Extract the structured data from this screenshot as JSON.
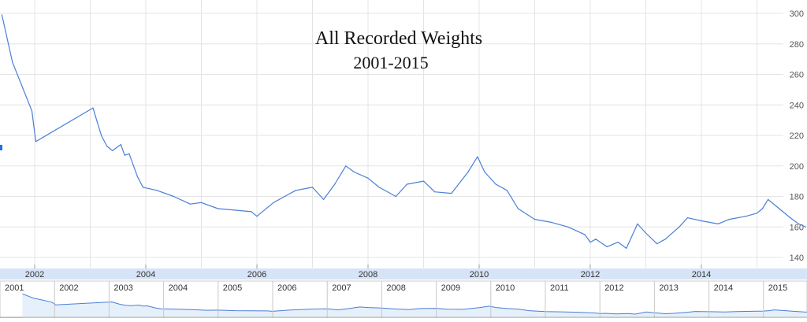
{
  "chart_data": [
    {
      "type": "line",
      "title": "All Recorded Weights",
      "subtitle": "2001-2015",
      "y_ticks": [
        "140",
        "160",
        "180",
        "200",
        "220",
        "240",
        "260",
        "280",
        "300"
      ],
      "x_ticks": [
        "2002",
        "2004",
        "2006",
        "2008",
        "2010",
        "2012",
        "2014"
      ],
      "ylim": [
        130,
        300
      ],
      "xlim": [
        2001.41,
        2015.88
      ],
      "grid": true,
      "line_color": "#4a7fd6",
      "series": [
        {
          "x": [
            2001.41,
            2001.6,
            2001.95,
            2002.02,
            2003.05,
            2003.1,
            2003.2,
            2003.3,
            2003.4,
            2003.55,
            2003.62,
            2003.7,
            2003.85,
            2003.95,
            2004.2,
            2004.5,
            2004.8,
            2005.0,
            2005.3,
            2005.6,
            2005.9,
            2006.0,
            2006.3,
            2006.5,
            2006.7,
            2007.0,
            2007.2,
            2007.4,
            2007.6,
            2007.75,
            2008.0,
            2008.2,
            2008.5,
            2008.7,
            2009.0,
            2009.2,
            2009.5,
            2009.8,
            2009.97,
            2010.1,
            2010.3,
            2010.5,
            2010.7,
            2011.0,
            2011.3,
            2011.6,
            2011.9,
            2012.0,
            2012.1,
            2012.3,
            2012.5,
            2012.65,
            2012.85,
            2013.0,
            2013.2,
            2013.35,
            2013.6,
            2013.75,
            2014.0,
            2014.3,
            2014.5,
            2014.8,
            2015.0,
            2015.1,
            2015.2,
            2015.4,
            2015.6,
            2015.75,
            2015.88
          ],
          "values": [
            299,
            268,
            236,
            216,
            238,
            232,
            220,
            213,
            210,
            214,
            207,
            208,
            193,
            186,
            184,
            180,
            175,
            176,
            172,
            171,
            170,
            167,
            176,
            180,
            184,
            186,
            178,
            188,
            200,
            196,
            192,
            186,
            180,
            188,
            190,
            183,
            182,
            196,
            206,
            196,
            188,
            184,
            172,
            165,
            163,
            160,
            155,
            150,
            152,
            147,
            150,
            146,
            162,
            156,
            149,
            152,
            160,
            166,
            164,
            162,
            165,
            167,
            169,
            172,
            178,
            172,
            166,
            162,
            160
          ]
        }
      ],
      "navigator": {
        "x_ticks": [
          "2001",
          "2002",
          "2003",
          "2004",
          "2005",
          "2006",
          "2007",
          "2008",
          "2009",
          "2010",
          "2011",
          "2012",
          "2013",
          "2014",
          "2015"
        ]
      }
    }
  ]
}
